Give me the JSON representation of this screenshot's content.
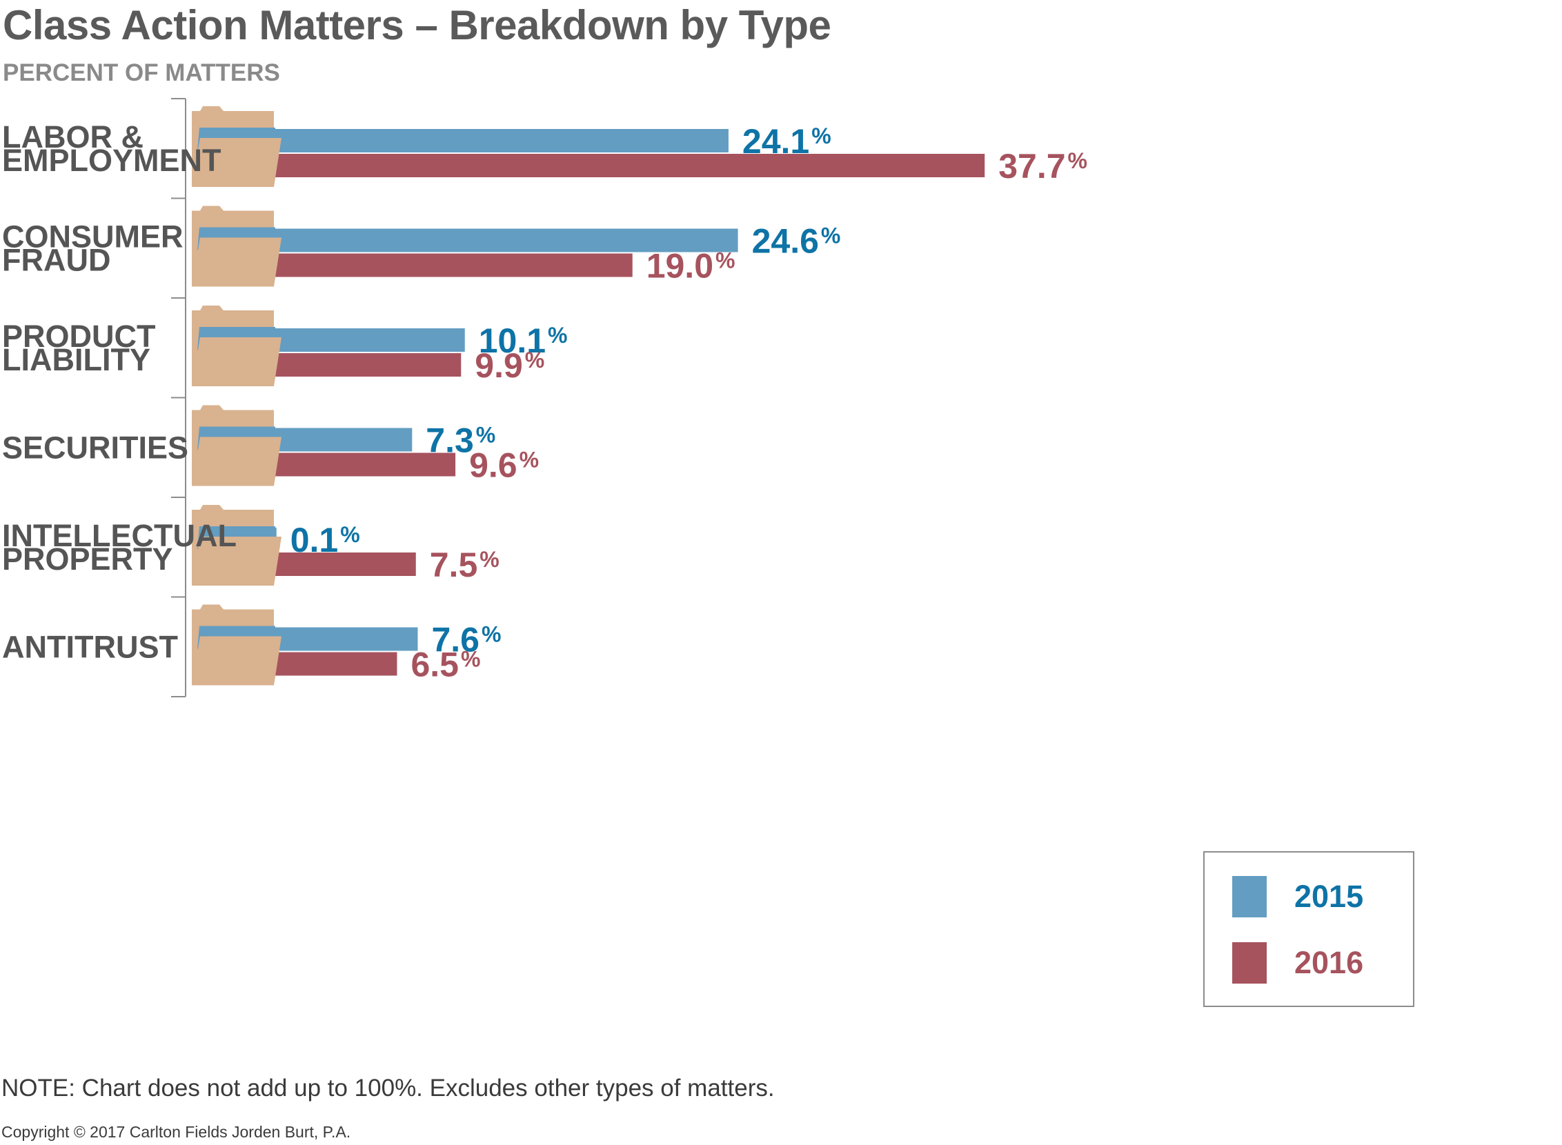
{
  "title": "Class Action Matters – Breakdown by Type",
  "subtitle": "PERCENT OF MATTERS",
  "colors": {
    "2015": "#639dc2",
    "2016": "#a6535e",
    "label_2015": "#0e73a6",
    "label_2016": "#a6535e",
    "folder": "#d9b28f",
    "axis": "#8c8c8c"
  },
  "chart_data": {
    "type": "bar",
    "orientation": "horizontal",
    "categories": [
      [
        "LABOR &",
        "EMPLOYMENT"
      ],
      [
        "CONSUMER",
        "FRAUD"
      ],
      [
        "PRODUCT",
        "LIABILITY"
      ],
      [
        "SECURITIES"
      ],
      [
        "INTELLECTUAL",
        "PROPERTY"
      ],
      [
        "ANTITRUST"
      ]
    ],
    "series": [
      {
        "name": "2015",
        "values": [
          24.1,
          24.6,
          10.1,
          7.3,
          0.1,
          7.6
        ],
        "labels": [
          "24.1",
          "24.6",
          "10.1",
          "7.3",
          "0.1",
          "7.6"
        ]
      },
      {
        "name": "2016",
        "values": [
          37.7,
          19.0,
          9.9,
          9.6,
          7.5,
          6.5
        ],
        "labels": [
          "37.7",
          "19.0",
          "9.9",
          "9.6",
          "7.5",
          "6.5"
        ]
      }
    ],
    "unit": "%",
    "legend_position": "bottom-right",
    "grid": false
  },
  "legend": {
    "items": [
      "2015",
      "2016"
    ]
  },
  "note": "NOTE: Chart does not add up to 100%. Excludes other types of matters.",
  "copyright": "Copyright © 2017 Carlton Fields Jorden Burt, P.A."
}
